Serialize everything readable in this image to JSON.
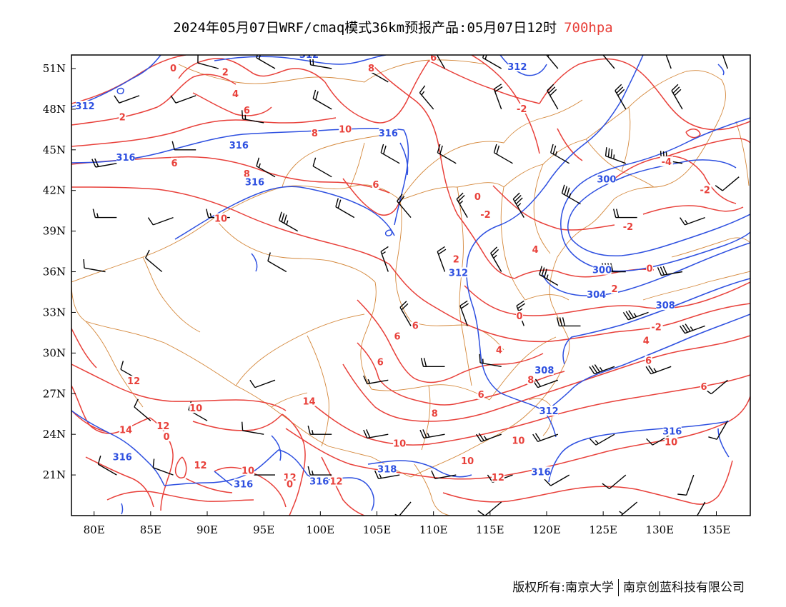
{
  "title": {
    "main": "2024年05月07日WRF/cmaq模式36km预报产品:05月07日12时",
    "level": "700hpa"
  },
  "footer": {
    "copyright": "版权所有:南京大学",
    "company": "南京创蓝科技有限公司"
  },
  "map": {
    "lon_range": [
      78,
      138
    ],
    "lat_range": [
      18,
      52
    ],
    "lon_ticks": [
      "80E",
      "85E",
      "90E",
      "95E",
      "100E",
      "105E",
      "110E",
      "115E",
      "120E",
      "125E",
      "130E",
      "135E"
    ],
    "lat_ticks": [
      "51N",
      "48N",
      "45N",
      "42N",
      "39N",
      "36N",
      "33N",
      "30N",
      "27N",
      "24N",
      "21N"
    ],
    "colors": {
      "temperature": "#e8403a",
      "geopotential": "#2d4fe0",
      "boundary": "#d4873a",
      "wind": "#000000"
    },
    "temperature_labels": [
      {
        "text": "0",
        "lon": 87.0,
        "lat": 51.0
      },
      {
        "text": "2",
        "lon": 91.6,
        "lat": 50.7
      },
      {
        "text": "4",
        "lon": 92.5,
        "lat": 49.1
      },
      {
        "text": "6",
        "lon": 93.5,
        "lat": 47.9
      },
      {
        "text": "8",
        "lon": 99.5,
        "lat": 46.2
      },
      {
        "text": "10",
        "lon": 102.2,
        "lat": 46.5
      },
      {
        "text": "6",
        "lon": 110.0,
        "lat": 51.8
      },
      {
        "text": "8",
        "lon": 104.5,
        "lat": 51.0
      },
      {
        "text": "2",
        "lon": 82.5,
        "lat": 47.4
      },
      {
        "text": "4",
        "lon": 82.8,
        "lat": 44.5
      },
      {
        "text": "6",
        "lon": 87.1,
        "lat": 44.0
      },
      {
        "text": "8",
        "lon": 93.5,
        "lat": 43.2
      },
      {
        "text": "6",
        "lon": 104.9,
        "lat": 42.4
      },
      {
        "text": "10",
        "lon": 91.2,
        "lat": 39.9
      },
      {
        "text": "-2",
        "lon": 117.8,
        "lat": 48.0
      },
      {
        "text": "-4",
        "lon": 130.6,
        "lat": 44.1
      },
      {
        "text": "-2",
        "lon": 134.0,
        "lat": 42.0
      },
      {
        "text": "-2",
        "lon": 114.6,
        "lat": 40.2
      },
      {
        "text": "-2",
        "lon": 127.2,
        "lat": 39.3
      },
      {
        "text": "0",
        "lon": 113.9,
        "lat": 41.5
      },
      {
        "text": "2",
        "lon": 112.0,
        "lat": 36.9
      },
      {
        "text": "4",
        "lon": 119.0,
        "lat": 37.6
      },
      {
        "text": "0",
        "lon": 129.1,
        "lat": 36.2
      },
      {
        "text": "2",
        "lon": 126.0,
        "lat": 34.7
      },
      {
        "text": "0",
        "lon": 117.6,
        "lat": 32.7
      },
      {
        "text": "-2",
        "lon": 129.7,
        "lat": 31.9
      },
      {
        "text": "4",
        "lon": 128.8,
        "lat": 30.9
      },
      {
        "text": "6",
        "lon": 129.0,
        "lat": 29.4
      },
      {
        "text": "6",
        "lon": 108.4,
        "lat": 32.0
      },
      {
        "text": "6",
        "lon": 106.8,
        "lat": 31.2
      },
      {
        "text": "6",
        "lon": 105.3,
        "lat": 29.3
      },
      {
        "text": "4",
        "lon": 115.8,
        "lat": 30.2
      },
      {
        "text": "8",
        "lon": 118.6,
        "lat": 28.0
      },
      {
        "text": "6",
        "lon": 114.2,
        "lat": 26.9
      },
      {
        "text": "8",
        "lon": 110.1,
        "lat": 25.5
      },
      {
        "text": "10",
        "lon": 107.0,
        "lat": 23.3
      },
      {
        "text": "10",
        "lon": 113.0,
        "lat": 22.0
      },
      {
        "text": "6",
        "lon": 133.9,
        "lat": 27.5
      },
      {
        "text": "10",
        "lon": 117.5,
        "lat": 23.5
      },
      {
        "text": "10",
        "lon": 131.0,
        "lat": 23.4
      },
      {
        "text": "12",
        "lon": 115.7,
        "lat": 20.8
      },
      {
        "text": "12",
        "lon": 83.5,
        "lat": 27.9
      },
      {
        "text": "10",
        "lon": 89.0,
        "lat": 25.9
      },
      {
        "text": "14",
        "lon": 99.0,
        "lat": 26.4
      },
      {
        "text": "14",
        "lon": 82.8,
        "lat": 24.3
      },
      {
        "text": "12",
        "lon": 86.1,
        "lat": 24.6
      },
      {
        "text": "0",
        "lon": 86.4,
        "lat": 23.8
      },
      {
        "text": "12",
        "lon": 89.4,
        "lat": 21.7
      },
      {
        "text": "10",
        "lon": 93.6,
        "lat": 21.3
      },
      {
        "text": "12",
        "lon": 97.3,
        "lat": 20.8
      },
      {
        "text": "0",
        "lon": 97.3,
        "lat": 20.3
      },
      {
        "text": "12",
        "lon": 101.4,
        "lat": 20.5
      }
    ],
    "geopotential_labels": [
      {
        "text": "312",
        "lon": 99.0,
        "lat": 52.0
      },
      {
        "text": "312",
        "lon": 117.4,
        "lat": 51.1
      },
      {
        "text": "312",
        "lon": 79.2,
        "lat": 48.2
      },
      {
        "text": "316",
        "lon": 106.0,
        "lat": 46.2
      },
      {
        "text": "316",
        "lon": 92.8,
        "lat": 45.3
      },
      {
        "text": "316",
        "lon": 82.8,
        "lat": 44.4
      },
      {
        "text": "316",
        "lon": 94.2,
        "lat": 42.6
      },
      {
        "text": "300",
        "lon": 125.3,
        "lat": 42.8
      },
      {
        "text": "312",
        "lon": 112.2,
        "lat": 35.9
      },
      {
        "text": "300",
        "lon": 124.9,
        "lat": 36.1
      },
      {
        "text": "304",
        "lon": 124.4,
        "lat": 34.3
      },
      {
        "text": "308",
        "lon": 130.5,
        "lat": 33.5
      },
      {
        "text": "308",
        "lon": 119.8,
        "lat": 28.7
      },
      {
        "text": "312",
        "lon": 120.2,
        "lat": 25.7
      },
      {
        "text": "316",
        "lon": 131.1,
        "lat": 24.2
      },
      {
        "text": "316",
        "lon": 82.5,
        "lat": 22.3
      },
      {
        "text": "318",
        "lon": 105.9,
        "lat": 21.4
      },
      {
        "text": "316",
        "lon": 99.9,
        "lat": 20.5
      },
      {
        "text": "316",
        "lon": 93.2,
        "lat": 20.3
      },
      {
        "text": "316",
        "lon": 119.5,
        "lat": 21.2
      }
    ],
    "wind_barbs": [
      {
        "lon": 91,
        "lat": 51,
        "dir": 285,
        "spd": 10
      },
      {
        "lon": 96,
        "lat": 51,
        "dir": 300,
        "spd": 15
      },
      {
        "lon": 101,
        "lat": 51,
        "dir": 280,
        "spd": 20
      },
      {
        "lon": 106,
        "lat": 50,
        "dir": 300,
        "spd": 10
      },
      {
        "lon": 111,
        "lat": 51,
        "dir": 330,
        "spd": 20
      },
      {
        "lon": 116,
        "lat": 51,
        "dir": 300,
        "spd": 20
      },
      {
        "lon": 121,
        "lat": 51,
        "dir": 320,
        "spd": 25
      },
      {
        "lon": 126,
        "lat": 51,
        "dir": 320,
        "spd": 20
      },
      {
        "lon": 131,
        "lat": 51,
        "dir": 340,
        "spd": 25
      },
      {
        "lon": 136,
        "lat": 51,
        "dir": 340,
        "spd": 15
      },
      {
        "lon": 84,
        "lat": 49,
        "dir": 250,
        "spd": 10
      },
      {
        "lon": 89,
        "lat": 49,
        "dir": 250,
        "spd": 10
      },
      {
        "lon": 95,
        "lat": 47,
        "dir": 280,
        "spd": 20
      },
      {
        "lon": 101,
        "lat": 48,
        "dir": 300,
        "spd": 20
      },
      {
        "lon": 110,
        "lat": 48,
        "dir": 320,
        "spd": 15
      },
      {
        "lon": 116,
        "lat": 48,
        "dir": 340,
        "spd": 20
      },
      {
        "lon": 121,
        "lat": 48,
        "dir": 330,
        "spd": 30
      },
      {
        "lon": 127,
        "lat": 48,
        "dir": 330,
        "spd": 30
      },
      {
        "lon": 132,
        "lat": 48,
        "dir": 330,
        "spd": 30
      },
      {
        "lon": 82,
        "lat": 44,
        "dir": 260,
        "spd": 20
      },
      {
        "lon": 89,
        "lat": 45,
        "dir": 270,
        "spd": 10
      },
      {
        "lon": 96,
        "lat": 43,
        "dir": 300,
        "spd": 15
      },
      {
        "lon": 101,
        "lat": 43,
        "dir": 300,
        "spd": 10
      },
      {
        "lon": 107,
        "lat": 44,
        "dir": 300,
        "spd": 20
      },
      {
        "lon": 112,
        "lat": 44,
        "dir": 300,
        "spd": 20
      },
      {
        "lon": 117,
        "lat": 44,
        "dir": 300,
        "spd": 20
      },
      {
        "lon": 122,
        "lat": 44,
        "dir": 300,
        "spd": 25
      },
      {
        "lon": 127,
        "lat": 44,
        "dir": 290,
        "spd": 35
      },
      {
        "lon": 132,
        "lat": 44,
        "dir": 280,
        "spd": 30
      },
      {
        "lon": 137,
        "lat": 43,
        "dir": 230,
        "spd": 10
      },
      {
        "lon": 82,
        "lat": 40,
        "dir": 270,
        "spd": 15
      },
      {
        "lon": 87,
        "lat": 40,
        "dir": 250,
        "spd": 10
      },
      {
        "lon": 92,
        "lat": 40,
        "dir": 270,
        "spd": 15
      },
      {
        "lon": 98,
        "lat": 39,
        "dir": 300,
        "spd": 35
      },
      {
        "lon": 103,
        "lat": 40,
        "dir": 300,
        "spd": 20
      },
      {
        "lon": 108,
        "lat": 40,
        "dir": 320,
        "spd": 20
      },
      {
        "lon": 113,
        "lat": 40,
        "dir": 330,
        "spd": 25
      },
      {
        "lon": 118,
        "lat": 40,
        "dir": 330,
        "spd": 35
      },
      {
        "lon": 123,
        "lat": 41,
        "dir": 300,
        "spd": 35
      },
      {
        "lon": 128,
        "lat": 40,
        "dir": 270,
        "spd": 20
      },
      {
        "lon": 134,
        "lat": 40,
        "dir": 250,
        "spd": 15
      },
      {
        "lon": 81,
        "lat": 36,
        "dir": 280,
        "spd": 10
      },
      {
        "lon": 86,
        "lat": 36,
        "dir": 310,
        "spd": 10
      },
      {
        "lon": 97,
        "lat": 36,
        "dir": 300,
        "spd": 10
      },
      {
        "lon": 106,
        "lat": 36,
        "dir": 340,
        "spd": 15
      },
      {
        "lon": 111,
        "lat": 36,
        "dir": 340,
        "spd": 20
      },
      {
        "lon": 116,
        "lat": 36,
        "dir": 330,
        "spd": 25
      },
      {
        "lon": 121,
        "lat": 35,
        "dir": 300,
        "spd": 35
      },
      {
        "lon": 127,
        "lat": 36,
        "dir": 270,
        "spd": 40
      },
      {
        "lon": 132,
        "lat": 36,
        "dir": 260,
        "spd": 30
      },
      {
        "lon": 108,
        "lat": 32,
        "dir": 330,
        "spd": 20
      },
      {
        "lon": 113,
        "lat": 32,
        "dir": 340,
        "spd": 20
      },
      {
        "lon": 118,
        "lat": 32,
        "dir": 340,
        "spd": 25
      },
      {
        "lon": 123,
        "lat": 32,
        "dir": 270,
        "spd": 30
      },
      {
        "lon": 129,
        "lat": 33,
        "dir": 250,
        "spd": 35
      },
      {
        "lon": 134,
        "lat": 32,
        "dir": 250,
        "spd": 35
      },
      {
        "lon": 84,
        "lat": 28,
        "dir": 300,
        "spd": 10
      },
      {
        "lon": 96,
        "lat": 28,
        "dir": 250,
        "spd": 10
      },
      {
        "lon": 106,
        "lat": 28,
        "dir": 260,
        "spd": 15
      },
      {
        "lon": 111,
        "lat": 29,
        "dir": 270,
        "spd": 20
      },
      {
        "lon": 116,
        "lat": 29,
        "dir": 280,
        "spd": 15
      },
      {
        "lon": 121,
        "lat": 28,
        "dir": 250,
        "spd": 20
      },
      {
        "lon": 126,
        "lat": 29,
        "dir": 250,
        "spd": 35
      },
      {
        "lon": 131,
        "lat": 29,
        "dir": 250,
        "spd": 25
      },
      {
        "lon": 136,
        "lat": 28,
        "dir": 230,
        "spd": 10
      },
      {
        "lon": 85,
        "lat": 25,
        "dir": 310,
        "spd": 10
      },
      {
        "lon": 90,
        "lat": 25,
        "dir": 300,
        "spd": 15
      },
      {
        "lon": 95,
        "lat": 24,
        "dir": 280,
        "spd": 10
      },
      {
        "lon": 101,
        "lat": 24,
        "dir": 270,
        "spd": 15
      },
      {
        "lon": 106,
        "lat": 24,
        "dir": 260,
        "spd": 20
      },
      {
        "lon": 111,
        "lat": 24,
        "dir": 260,
        "spd": 25
      },
      {
        "lon": 116,
        "lat": 24,
        "dir": 250,
        "spd": 25
      },
      {
        "lon": 121,
        "lat": 24,
        "dir": 250,
        "spd": 20
      },
      {
        "lon": 126,
        "lat": 24,
        "dir": 240,
        "spd": 15
      },
      {
        "lon": 131,
        "lat": 24,
        "dir": 240,
        "spd": 10
      },
      {
        "lon": 136,
        "lat": 25,
        "dir": 210,
        "spd": 10
      },
      {
        "lon": 82,
        "lat": 21,
        "dir": 300,
        "spd": 10
      },
      {
        "lon": 87,
        "lat": 21,
        "dir": 290,
        "spd": 10
      },
      {
        "lon": 96,
        "lat": 21,
        "dir": 270,
        "spd": 10
      },
      {
        "lon": 101,
        "lat": 21,
        "dir": 270,
        "spd": 15
      },
      {
        "lon": 107,
        "lat": 21,
        "dir": 260,
        "spd": 15
      },
      {
        "lon": 112,
        "lat": 21,
        "dir": 260,
        "spd": 10
      },
      {
        "lon": 117,
        "lat": 21,
        "dir": 250,
        "spd": 15
      },
      {
        "lon": 122,
        "lat": 21,
        "dir": 240,
        "spd": 10
      },
      {
        "lon": 127,
        "lat": 21,
        "dir": 230,
        "spd": 10
      },
      {
        "lon": 133,
        "lat": 21,
        "dir": 200,
        "spd": 10
      },
      {
        "lon": 108,
        "lat": 19,
        "dir": 220,
        "spd": 5
      },
      {
        "lon": 116,
        "lat": 19,
        "dir": 230,
        "spd": 10
      },
      {
        "lon": 128,
        "lat": 19,
        "dir": 230,
        "spd": 5
      },
      {
        "lon": 134,
        "lat": 19,
        "dir": 210,
        "spd": 10
      }
    ]
  }
}
